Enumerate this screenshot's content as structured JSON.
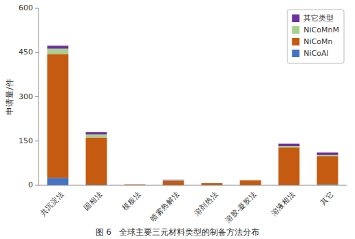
{
  "chart_data": {
    "type": "bar",
    "stacked": true,
    "caption": "图 6   全球主要三元材料类型的制备方法分布",
    "ylabel": "申请量/件",
    "categories": [
      "共沉淀法",
      "固相法",
      "模板法",
      "喷雾热解法",
      "溶剂热法",
      "溶胶-凝胶法",
      "溶液相法",
      "其它"
    ],
    "series": [
      {
        "name": "NiCoAl",
        "color": "#4472c4",
        "values": [
          25,
          2,
          0,
          0,
          0,
          0,
          0,
          3
        ]
      },
      {
        "name": "NiCoMn",
        "color": "#c55a11",
        "values": [
          420,
          160,
          3,
          15,
          7,
          17,
          128,
          95
        ]
      },
      {
        "name": "NiCoMnM",
        "color": "#a9d18e",
        "values": [
          18,
          10,
          0,
          2,
          0,
          0,
          5,
          5
        ]
      },
      {
        "name": "其它类型",
        "color": "#7030a0",
        "values": [
          10,
          8,
          0,
          2,
          0,
          0,
          8,
          8
        ]
      }
    ],
    "ylim": [
      0,
      600
    ],
    "yticks": [
      0,
      150,
      300,
      450,
      600
    ],
    "legend": "upper right",
    "grid": false
  }
}
